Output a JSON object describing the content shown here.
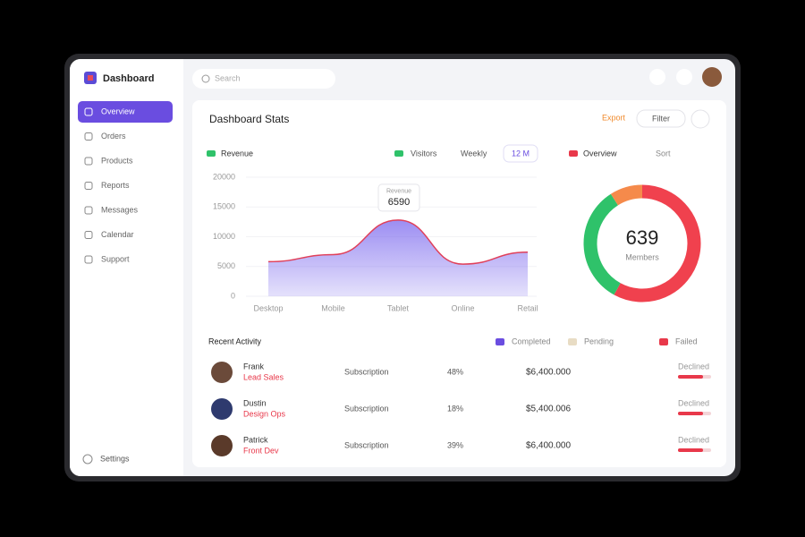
{
  "sidebar": {
    "brand": "Dashboard",
    "nav": [
      "Overview",
      "Orders",
      "Products",
      "Reports",
      "Messages",
      "Calendar",
      "Support"
    ],
    "footer": "Settings"
  },
  "search": {
    "placeholder": "Search"
  },
  "card": {
    "title": "Dashboard Stats",
    "actions": [
      "Export",
      "Filter"
    ]
  },
  "area_chart": {
    "legend": "Revenue",
    "filters": [
      "Visitors",
      "Weekly",
      "12 M"
    ],
    "categories": [
      "Desktop",
      "Mobile",
      "Tablet",
      "Online",
      "Retail"
    ],
    "values": [
      5800,
      7000,
      12800,
      5400,
      7400
    ],
    "ylim": [
      0,
      20000
    ],
    "yticks": [
      0,
      5000,
      10000,
      15000,
      20000
    ],
    "color": "#7b68ee",
    "tooltip": {
      "title": "Revenue",
      "value": "6590"
    }
  },
  "donut": {
    "legend": "Overview",
    "filter": "Sort",
    "center": "639",
    "subtitle": "Members",
    "segments": [
      {
        "color": "#f0414e",
        "value": 58
      },
      {
        "color": "#2fc26a",
        "value": 33
      },
      {
        "color": "#f58a4b",
        "value": 9
      }
    ]
  },
  "table": {
    "title": "Recent Activity",
    "legend": [
      {
        "name": "Completed",
        "color": "#6a4de0"
      },
      {
        "name": "Pending",
        "color": "#e8dcc4"
      },
      {
        "name": "Failed",
        "color": "#e8384a"
      }
    ],
    "rows": [
      {
        "name": "Frank",
        "role": "Lead Sales",
        "item": "Subscription",
        "qty": "48%",
        "amount": "$6,400.000",
        "status": "Declined"
      },
      {
        "name": "Dustin",
        "role": "Design Ops",
        "item": "Subscription",
        "qty": "18%",
        "amount": "$5,400.006",
        "status": "Declined"
      },
      {
        "name": "Patrick",
        "role": "Front Dev",
        "item": "Subscription",
        "qty": "39%",
        "amount": "$6,400.000",
        "status": "Declined"
      }
    ]
  }
}
